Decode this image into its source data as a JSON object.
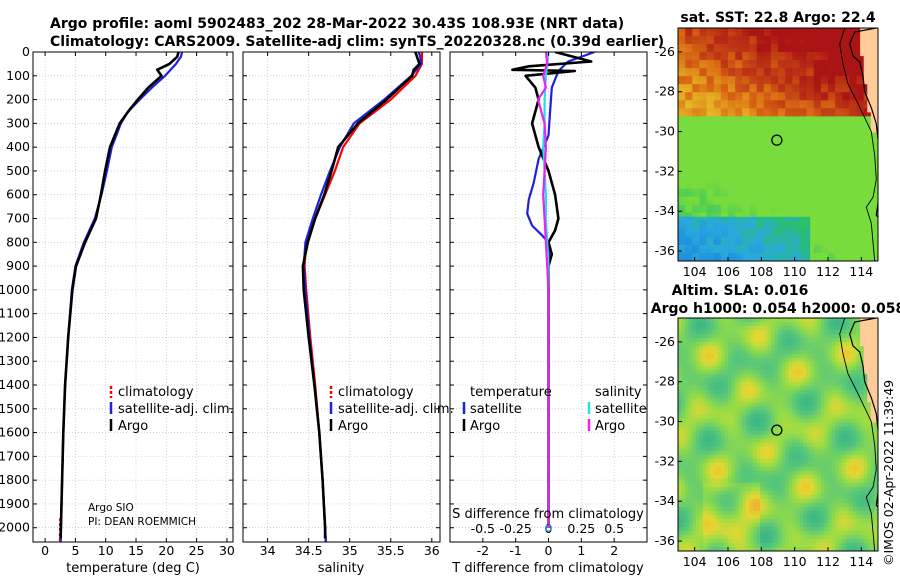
{
  "header": {
    "line1": "Argo profile: aoml 5902483_202 28-Mar-2022 30.43S 108.93E (NRT data)",
    "line2": "Climatology: CARS2009. Satellite-adj clim: synTS_20220328.nc (0.39d earlier)"
  },
  "colors": {
    "climatology": "#ff0000",
    "satellite_adj": "#1f1fdd",
    "argo": "#000000",
    "satellite_s": "#22e0e8",
    "argo_s": "#ee22ee",
    "grid": "#b8b8d8"
  },
  "chart_data": [
    {
      "name": "temperature-profile",
      "type": "line",
      "xlabel": "temperature (deg C)",
      "ylabel": "",
      "xlim": [
        -2,
        31
      ],
      "ylim": [
        2060,
        0
      ],
      "xticks": [
        0,
        5,
        10,
        15,
        20,
        25,
        30
      ],
      "yticks": [
        0,
        100,
        200,
        300,
        400,
        500,
        600,
        700,
        800,
        900,
        1000,
        1100,
        1200,
        1300,
        1400,
        1500,
        1600,
        1700,
        1800,
        1900,
        2000
      ],
      "annotation": [
        "Argo SIO",
        "PI: DEAN ROEMMICH"
      ],
      "legend": [
        "climatology",
        "satellite-adj. clim.",
        "Argo"
      ],
      "series": [
        {
          "name": "climatology",
          "color": "#ff0000",
          "depth": [
            1960,
            2060
          ],
          "values": [
            2.55,
            2.5
          ]
        },
        {
          "name": "satellite-adj. clim.",
          "color": "#1f1fdd",
          "depth": [
            0,
            20,
            50,
            100,
            150,
            200,
            250,
            300,
            400,
            500,
            600,
            700,
            800,
            900,
            1000,
            1200,
            1400,
            1600,
            1800,
            2000,
            2060
          ],
          "values": [
            22.6,
            22.4,
            21.6,
            19.8,
            17.6,
            15.6,
            13.7,
            12.5,
            11.0,
            10.2,
            9.3,
            8.2,
            6.4,
            5.0,
            4.4,
            3.8,
            3.3,
            3.0,
            2.8,
            2.6,
            2.55
          ]
        },
        {
          "name": "Argo",
          "color": "#000000",
          "depth": [
            0,
            20,
            50,
            75,
            100,
            150,
            200,
            250,
            300,
            400,
            500,
            600,
            700,
            800,
            900,
            1000,
            1200,
            1400,
            1600,
            1800,
            2000,
            2045
          ],
          "values": [
            22.0,
            21.8,
            20.5,
            18.5,
            19.2,
            17.0,
            15.3,
            13.7,
            12.3,
            10.7,
            9.9,
            9.2,
            8.4,
            6.6,
            5.1,
            4.5,
            3.8,
            3.3,
            3.0,
            2.8,
            2.6,
            2.55
          ]
        }
      ]
    },
    {
      "name": "salinity-profile",
      "type": "line",
      "xlabel": "salinity",
      "xlim": [
        33.7,
        36.1
      ],
      "xticks": [
        34,
        34.5,
        35,
        35.5,
        36
      ],
      "ylim": [
        2060,
        0
      ],
      "legend": [
        "climatology",
        "satellite-adj. clim.",
        "Argo"
      ],
      "series": [
        {
          "name": "climatology",
          "color": "#ff0000",
          "depth": [
            0,
            50,
            100,
            200,
            300,
            400,
            500,
            600,
            700,
            800,
            900,
            1000,
            1200,
            1400,
            1600,
            1800,
            2000,
            2060
          ],
          "values": [
            35.88,
            35.88,
            35.8,
            35.5,
            35.12,
            34.92,
            34.82,
            34.7,
            34.58,
            34.47,
            34.45,
            34.47,
            34.52,
            34.58,
            34.63,
            34.67,
            34.7,
            34.71
          ]
        },
        {
          "name": "satellite-adj. clim.",
          "color": "#1f1fdd",
          "depth": [
            0,
            20,
            50,
            100,
            200,
            300,
            400,
            500,
            600,
            700,
            800,
            900,
            1000,
            1200,
            1400,
            1600,
            1800,
            2000,
            2060
          ],
          "values": [
            35.84,
            35.86,
            35.87,
            35.75,
            35.42,
            35.05,
            34.88,
            34.76,
            34.65,
            34.55,
            34.46,
            34.44,
            34.46,
            34.51,
            34.57,
            34.63,
            34.67,
            34.7,
            34.71
          ]
        },
        {
          "name": "Argo",
          "color": "#000000",
          "depth": [
            0,
            20,
            50,
            75,
            100,
            200,
            300,
            400,
            500,
            600,
            700,
            800,
            900,
            1000,
            1200,
            1400,
            1600,
            1800,
            2000,
            2045
          ],
          "values": [
            35.8,
            35.82,
            35.85,
            35.78,
            35.76,
            35.45,
            35.1,
            34.86,
            34.78,
            34.69,
            34.58,
            34.49,
            34.43,
            34.44,
            34.5,
            34.57,
            34.63,
            34.67,
            34.7,
            34.7
          ]
        }
      ]
    },
    {
      "name": "difference-profile",
      "type": "line",
      "xlabel": "T difference from climatology",
      "xlabel2": "S difference from climatology",
      "xlim": [
        -3,
        3
      ],
      "xticks": [
        -2,
        -1,
        0,
        1,
        2
      ],
      "xticks_S": [
        "-0.5",
        "-0.25",
        "0",
        "0.25",
        "0.5"
      ],
      "ylim": [
        2060,
        0
      ],
      "legend_temperature_title": "temperature",
      "legend_salinity_title": "salinity",
      "legend_temperature": [
        "satellite",
        "Argo"
      ],
      "legend_salinity": [
        "satellite",
        "Argo"
      ],
      "series": [
        {
          "name": "T satellite-adj",
          "color": "#1f1fdd",
          "depth": [
            0,
            40,
            80,
            150,
            250,
            350,
            450,
            550,
            620,
            680,
            730,
            770,
            800,
            850,
            900,
            1000,
            1200,
            1400,
            1600,
            1800,
            2000
          ],
          "values": [
            1.4,
            0.6,
            0.3,
            0.1,
            0.05,
            0.0,
            -0.3,
            -0.45,
            -0.6,
            -0.65,
            -0.5,
            -0.2,
            0.0,
            0.02,
            0.0,
            0.0,
            0.0,
            0.0,
            0.0,
            0.0,
            0.0
          ]
        },
        {
          "name": "T Argo",
          "color": "#000000",
          "depth": [
            0,
            40,
            60,
            75,
            80,
            100,
            150,
            200,
            300,
            400,
            500,
            600,
            700,
            750,
            800,
            850,
            900,
            1000,
            1200,
            1400,
            1600,
            1800,
            2000
          ],
          "values": [
            0.2,
            1.3,
            -0.6,
            -1.1,
            0.8,
            -0.7,
            -0.4,
            -0.3,
            -0.5,
            -0.3,
            0.0,
            0.2,
            0.3,
            0.2,
            0.0,
            0.1,
            0.0,
            0.0,
            0.0,
            0.0,
            0.0,
            0.0,
            0.0
          ]
        },
        {
          "name": "S satellite",
          "color": "#22e0e8",
          "depth": [
            0,
            100,
            200,
            300,
            400,
            500,
            600,
            700,
            800,
            900,
            1000,
            1200,
            1500,
            1800,
            2000
          ],
          "values": [
            0.0,
            -0.02,
            -0.03,
            -0.03,
            -0.04,
            -0.03,
            -0.02,
            -0.02,
            -0.01,
            0.0,
            0.0,
            0.0,
            0.0,
            0.0,
            0.0
          ]
        },
        {
          "name": "S Argo",
          "color": "#ee22ee",
          "depth": [
            0,
            50,
            100,
            150,
            200,
            300,
            400,
            500,
            600,
            700,
            800,
            900,
            1000,
            1200,
            1500,
            1800,
            2000
          ],
          "values": [
            -0.02,
            -0.01,
            -0.04,
            -0.02,
            -0.08,
            -0.03,
            -0.02,
            -0.03,
            -0.04,
            -0.03,
            -0.02,
            -0.01,
            0.0,
            0.0,
            0.0,
            0.0,
            0.0
          ]
        }
      ]
    },
    {
      "name": "sst-map",
      "type": "heatmap",
      "title": "sat. SST: 22.8 Argo: 22.4",
      "xlim": [
        103,
        115
      ],
      "ylim": [
        -36.5,
        -24.8
      ],
      "xticks": [
        104,
        106,
        108,
        110,
        112,
        114
      ],
      "yticks": [
        -26,
        -28,
        -30,
        -32,
        -34,
        -36
      ],
      "argo_position": [
        108.93,
        -30.43
      ]
    },
    {
      "name": "sla-map",
      "type": "heatmap",
      "title_line1": "Altim. SLA: 0.016",
      "title_line2": "Argo h1000: 0.054 h2000: 0.058",
      "xlim": [
        103,
        115
      ],
      "ylim": [
        -36.5,
        -24.8
      ],
      "xticks": [
        104,
        106,
        108,
        110,
        112,
        114
      ],
      "yticks": [
        -26,
        -28,
        -30,
        -32,
        -34,
        -36
      ],
      "argo_position": [
        108.93,
        -30.43
      ]
    }
  ],
  "copyright": "©IMOS 02-Apr-2022 11:39:49"
}
